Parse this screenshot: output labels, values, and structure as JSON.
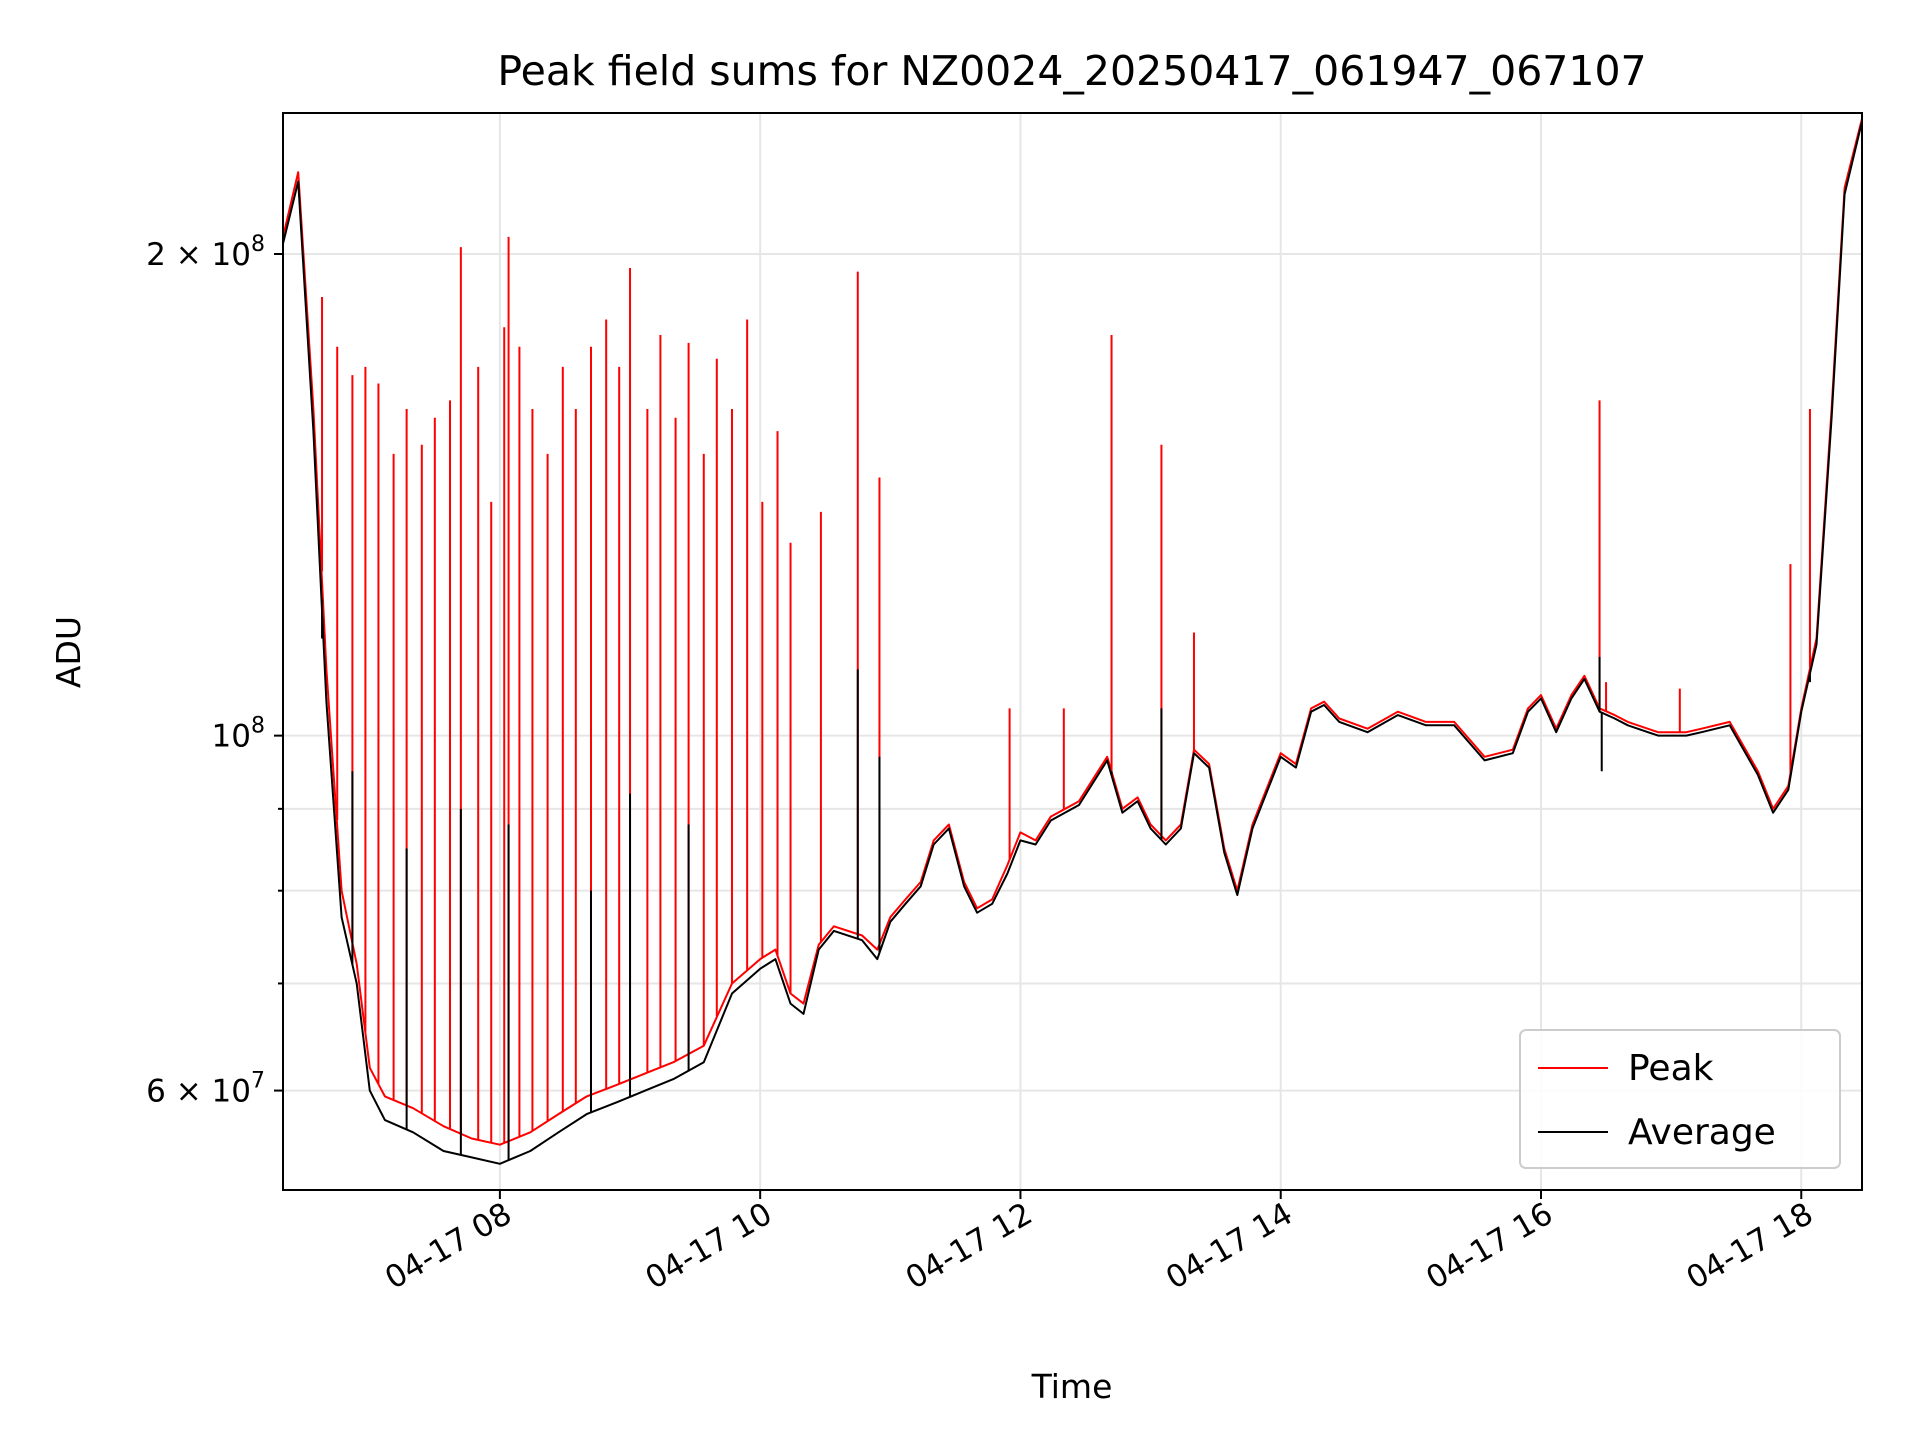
{
  "chart_data": {
    "type": "line",
    "title": "Peak field sums for NZ0024_20250417_061947_067107",
    "xlabel": "Time",
    "ylabel": "ADU",
    "y_scale": "log",
    "ylim": [
      52000000,
      245000000
    ],
    "x_tick_labels": [
      "04-17 08",
      "04-17 10",
      "04-17 12",
      "04-17 14",
      "04-17 16",
      "04-17 18"
    ],
    "y_tick_labels": [
      {
        "value": 60000000,
        "mantissa": "6",
        "exponent": "7"
      },
      {
        "value": 100000000,
        "mantissa": "",
        "exponent": "8"
      },
      {
        "value": 200000000,
        "mantissa": "2",
        "exponent": "8"
      }
    ],
    "x_axis_start": "04-17 06:20",
    "x_axis_end": "04-17 18:28",
    "grid": true,
    "legend_position": "lower right",
    "series": [
      {
        "name": "Peak",
        "color": "#ff0000",
        "points": [
          [
            "04-17 06:20",
            205000000
          ],
          [
            "04-17 06:27",
            225000000
          ],
          [
            "04-17 06:34",
            160000000
          ],
          [
            "04-17 06:40",
            110000000
          ],
          [
            "04-17 06:47",
            80000000
          ],
          [
            "04-17 06:54",
            72000000
          ],
          [
            "04-17 07:00",
            62000000
          ],
          [
            "04-17 07:07",
            59500000
          ],
          [
            "04-17 07:20",
            58500000
          ],
          [
            "04-17 07:34",
            57000000
          ],
          [
            "04-17 07:47",
            56000000
          ],
          [
            "04-17 08:00",
            55500000
          ],
          [
            "04-17 08:14",
            56500000
          ],
          [
            "04-17 08:27",
            58000000
          ],
          [
            "04-17 08:40",
            59500000
          ],
          [
            "04-17 08:54",
            60500000
          ],
          [
            "04-17 09:07",
            61500000
          ],
          [
            "04-17 09:20",
            62500000
          ],
          [
            "04-17 09:34",
            64000000
          ],
          [
            "04-17 09:47",
            70000000
          ],
          [
            "04-17 10:00",
            72500000
          ],
          [
            "04-17 10:07",
            73500000
          ],
          [
            "04-17 10:14",
            69000000
          ],
          [
            "04-17 10:20",
            68000000
          ],
          [
            "04-17 10:27",
            74000000
          ],
          [
            "04-17 10:34",
            76000000
          ],
          [
            "04-17 10:47",
            75000000
          ],
          [
            "04-17 10:54",
            73500000
          ],
          [
            "04-17 11:00",
            77000000
          ],
          [
            "04-17 11:07",
            79000000
          ],
          [
            "04-17 11:14",
            81000000
          ],
          [
            "04-17 11:20",
            86000000
          ],
          [
            "04-17 11:27",
            88000000
          ],
          [
            "04-17 11:34",
            81000000
          ],
          [
            "04-17 11:40",
            78000000
          ],
          [
            "04-17 11:47",
            79000000
          ],
          [
            "04-17 11:54",
            83000000
          ],
          [
            "04-17 12:00",
            87000000
          ],
          [
            "04-17 12:07",
            86000000
          ],
          [
            "04-17 12:14",
            89000000
          ],
          [
            "04-17 12:27",
            91000000
          ],
          [
            "04-17 12:40",
            97000000
          ],
          [
            "04-17 12:47",
            90000000
          ],
          [
            "04-17 12:54",
            91500000
          ],
          [
            "04-17 13:00",
            88000000
          ],
          [
            "04-17 13:07",
            86000000
          ],
          [
            "04-17 13:14",
            88000000
          ],
          [
            "04-17 13:20",
            98000000
          ],
          [
            "04-17 13:27",
            96000000
          ],
          [
            "04-17 13:34",
            85000000
          ],
          [
            "04-17 13:40",
            80000000
          ],
          [
            "04-17 13:47",
            88000000
          ],
          [
            "04-17 13:54",
            93000000
          ],
          [
            "04-17 14:00",
            97500000
          ],
          [
            "04-17 14:07",
            96000000
          ],
          [
            "04-17 14:14",
            104000000
          ],
          [
            "04-17 14:20",
            105000000
          ],
          [
            "04-17 14:27",
            102500000
          ],
          [
            "04-17 14:40",
            101000000
          ],
          [
            "04-17 14:54",
            103500000
          ],
          [
            "04-17 15:07",
            102000000
          ],
          [
            "04-17 15:20",
            102000000
          ],
          [
            "04-17 15:34",
            97000000
          ],
          [
            "04-17 15:47",
            98000000
          ],
          [
            "04-17 15:54",
            104000000
          ],
          [
            "04-17 16:00",
            106000000
          ],
          [
            "04-17 16:07",
            101000000
          ],
          [
            "04-17 16:14",
            106000000
          ],
          [
            "04-17 16:20",
            109000000
          ],
          [
            "04-17 16:27",
            104000000
          ],
          [
            "04-17 16:34",
            103000000
          ],
          [
            "04-17 16:40",
            102000000
          ],
          [
            "04-17 16:54",
            100500000
          ],
          [
            "04-17 17:07",
            100500000
          ],
          [
            "04-17 17:14",
            101000000
          ],
          [
            "04-17 17:27",
            102000000
          ],
          [
            "04-17 17:40",
            95000000
          ],
          [
            "04-17 17:47",
            90000000
          ],
          [
            "04-17 17:54",
            93000000
          ],
          [
            "04-17 18:00",
            104000000
          ],
          [
            "04-17 18:07",
            115000000
          ],
          [
            "04-17 18:14",
            160000000
          ],
          [
            "04-17 18:20",
            220000000
          ],
          [
            "04-17 18:28",
            243000000
          ]
        ],
        "spikes": [
          [
            "04-17 06:38",
            188000000
          ],
          [
            "04-17 06:45",
            175000000
          ],
          [
            "04-17 06:52",
            168000000
          ],
          [
            "04-17 06:58",
            170000000
          ],
          [
            "04-17 07:04",
            166000000
          ],
          [
            "04-17 07:11",
            150000000
          ],
          [
            "04-17 07:17",
            160000000
          ],
          [
            "04-17 07:24",
            152000000
          ],
          [
            "04-17 07:30",
            158000000
          ],
          [
            "04-17 07:37",
            162000000
          ],
          [
            "04-17 07:42",
            202000000
          ],
          [
            "04-17 07:50",
            170000000
          ],
          [
            "04-17 07:56",
            140000000
          ],
          [
            "04-17 08:02",
            180000000
          ],
          [
            "04-17 08:09",
            175000000
          ],
          [
            "04-17 08:04",
            205000000
          ],
          [
            "04-17 08:15",
            160000000
          ],
          [
            "04-17 08:22",
            150000000
          ],
          [
            "04-17 08:29",
            170000000
          ],
          [
            "04-17 08:35",
            160000000
          ],
          [
            "04-17 08:42",
            175000000
          ],
          [
            "04-17 08:49",
            182000000
          ],
          [
            "04-17 08:55",
            170000000
          ],
          [
            "04-17 09:00",
            196000000
          ],
          [
            "04-17 09:08",
            160000000
          ],
          [
            "04-17 09:14",
            178000000
          ],
          [
            "04-17 09:21",
            158000000
          ],
          [
            "04-17 09:27",
            176000000
          ],
          [
            "04-17 09:34",
            150000000
          ],
          [
            "04-17 09:40",
            172000000
          ],
          [
            "04-17 09:47",
            160000000
          ],
          [
            "04-17 09:54",
            182000000
          ],
          [
            "04-17 10:01",
            140000000
          ],
          [
            "04-17 10:08",
            155000000
          ],
          [
            "04-17 10:14",
            132000000
          ],
          [
            "04-17 10:28",
            138000000
          ],
          [
            "04-17 10:45",
            195000000
          ],
          [
            "04-17 10:55",
            145000000
          ],
          [
            "04-17 11:55",
            104000000
          ],
          [
            "04-17 12:20",
            104000000
          ],
          [
            "04-17 12:42",
            178000000
          ],
          [
            "04-17 13:05",
            152000000
          ],
          [
            "04-17 13:20",
            116000000
          ],
          [
            "04-17 16:27",
            162000000
          ],
          [
            "04-17 16:30",
            108000000
          ],
          [
            "04-17 17:04",
            107000000
          ],
          [
            "04-17 17:55",
            128000000
          ],
          [
            "04-17 18:04",
            160000000
          ]
        ]
      },
      {
        "name": "Average",
        "color": "#000000",
        "points": [
          [
            "04-17 06:20",
            203000000
          ],
          [
            "04-17 06:27",
            222000000
          ],
          [
            "04-17 06:34",
            155000000
          ],
          [
            "04-17 06:40",
            105000000
          ],
          [
            "04-17 06:47",
            77000000
          ],
          [
            "04-17 06:54",
            70000000
          ],
          [
            "04-17 07:00",
            60000000
          ],
          [
            "04-17 07:07",
            57500000
          ],
          [
            "04-17 07:20",
            56500000
          ],
          [
            "04-17 07:34",
            55000000
          ],
          [
            "04-17 07:47",
            54500000
          ],
          [
            "04-17 08:00",
            54000000
          ],
          [
            "04-17 08:14",
            55000000
          ],
          [
            "04-17 08:27",
            56500000
          ],
          [
            "04-17 08:40",
            58000000
          ],
          [
            "04-17 08:54",
            59000000
          ],
          [
            "04-17 09:07",
            60000000
          ],
          [
            "04-17 09:20",
            61000000
          ],
          [
            "04-17 09:34",
            62500000
          ],
          [
            "04-17 09:47",
            69000000
          ],
          [
            "04-17 10:00",
            71500000
          ],
          [
            "04-17 10:07",
            72500000
          ],
          [
            "04-17 10:14",
            68000000
          ],
          [
            "04-17 10:20",
            67000000
          ],
          [
            "04-17 10:27",
            73500000
          ],
          [
            "04-17 10:34",
            75500000
          ],
          [
            "04-17 10:47",
            74500000
          ],
          [
            "04-17 10:54",
            72500000
          ],
          [
            "04-17 11:00",
            76500000
          ],
          [
            "04-17 11:07",
            78500000
          ],
          [
            "04-17 11:14",
            80500000
          ],
          [
            "04-17 11:20",
            85500000
          ],
          [
            "04-17 11:27",
            87500000
          ],
          [
            "04-17 11:34",
            80500000
          ],
          [
            "04-17 11:40",
            77500000
          ],
          [
            "04-17 11:47",
            78500000
          ],
          [
            "04-17 11:54",
            82000000
          ],
          [
            "04-17 12:00",
            86000000
          ],
          [
            "04-17 12:07",
            85500000
          ],
          [
            "04-17 12:14",
            88500000
          ],
          [
            "04-17 12:27",
            90500000
          ],
          [
            "04-17 12:40",
            96500000
          ],
          [
            "04-17 12:47",
            89500000
          ],
          [
            "04-17 12:54",
            91000000
          ],
          [
            "04-17 13:00",
            87500000
          ],
          [
            "04-17 13:07",
            85500000
          ],
          [
            "04-17 13:14",
            87500000
          ],
          [
            "04-17 13:20",
            97500000
          ],
          [
            "04-17 13:27",
            95500000
          ],
          [
            "04-17 13:34",
            84500000
          ],
          [
            "04-17 13:40",
            79500000
          ],
          [
            "04-17 13:47",
            87500000
          ],
          [
            "04-17 13:54",
            92500000
          ],
          [
            "04-17 14:00",
            97000000
          ],
          [
            "04-17 14:07",
            95500000
          ],
          [
            "04-17 14:14",
            103500000
          ],
          [
            "04-17 14:20",
            104500000
          ],
          [
            "04-17 14:27",
            102000000
          ],
          [
            "04-17 14:40",
            100500000
          ],
          [
            "04-17 14:54",
            103000000
          ],
          [
            "04-17 15:07",
            101500000
          ],
          [
            "04-17 15:20",
            101500000
          ],
          [
            "04-17 15:34",
            96500000
          ],
          [
            "04-17 15:47",
            97500000
          ],
          [
            "04-17 15:54",
            103500000
          ],
          [
            "04-17 16:00",
            105500000
          ],
          [
            "04-17 16:07",
            100500000
          ],
          [
            "04-17 16:14",
            105500000
          ],
          [
            "04-17 16:20",
            108500000
          ],
          [
            "04-17 16:27",
            103500000
          ],
          [
            "04-17 16:34",
            102500000
          ],
          [
            "04-17 16:40",
            101500000
          ],
          [
            "04-17 16:54",
            100000000
          ],
          [
            "04-17 17:07",
            100000000
          ],
          [
            "04-17 17:14",
            100500000
          ],
          [
            "04-17 17:27",
            101500000
          ],
          [
            "04-17 17:40",
            94500000
          ],
          [
            "04-17 17:47",
            89500000
          ],
          [
            "04-17 17:54",
            92500000
          ],
          [
            "04-17 18:00",
            103500000
          ],
          [
            "04-17 18:07",
            114000000
          ],
          [
            "04-17 18:14",
            158000000
          ],
          [
            "04-17 18:20",
            218000000
          ],
          [
            "04-17 18:28",
            242000000
          ]
        ],
        "spikes": [
          [
            "04-17 06:38",
            115000000
          ],
          [
            "04-17 06:52",
            95000000
          ],
          [
            "04-17 07:17",
            85000000
          ],
          [
            "04-17 07:42",
            90000000
          ],
          [
            "04-17 08:04",
            88000000
          ],
          [
            "04-17 08:42",
            80000000
          ],
          [
            "04-17 09:00",
            92000000
          ],
          [
            "04-17 09:27",
            88000000
          ],
          [
            "04-17 10:45",
            110000000
          ],
          [
            "04-17 10:55",
            97000000
          ],
          [
            "04-17 12:42",
            95000000
          ],
          [
            "04-17 13:05",
            104000000
          ],
          [
            "04-17 16:27",
            112000000
          ],
          [
            "04-17 16:28",
            95000000
          ],
          [
            "04-17 18:04",
            108000000
          ]
        ]
      }
    ]
  }
}
